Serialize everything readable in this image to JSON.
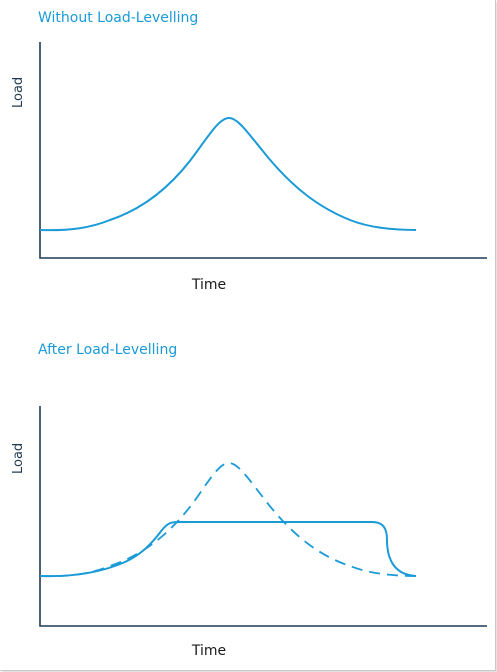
{
  "colors": {
    "accent": "#1a9bd7",
    "axis": "#1f3a52",
    "text": "#1a1a1a",
    "background": "#ffffff"
  },
  "top_diagram": {
    "title": "Without Load-Levelling",
    "y_label": "Load",
    "x_label": "Time"
  },
  "bottom_diagram": {
    "title": "After Load-Levelling",
    "y_label": "Load",
    "x_label": "Time"
  }
}
